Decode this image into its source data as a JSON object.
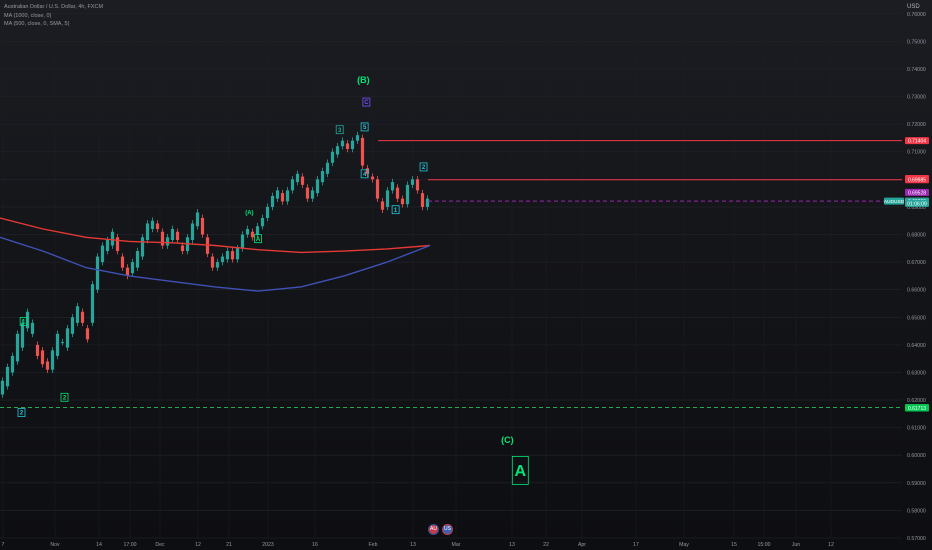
{
  "chart": {
    "title": "Australian Dollar / U.S. Dollar, 4h, FXCM",
    "currency": "USD",
    "indicators": [
      "MA (1000, close, 0)",
      "MA (500, close, 0, SMA, 5)"
    ]
  },
  "chart_data": {
    "type": "candlestick",
    "symbol": "AUDUSD",
    "ylim": [
      0.57,
      0.765
    ],
    "y_ticks": [
      "0.76000",
      "0.75000",
      "0.74000",
      "0.73000",
      "0.72000",
      "0.71000",
      "0.70000",
      "0.69000",
      "0.68000",
      "0.67000",
      "0.66000",
      "0.65000",
      "0.64000",
      "0.63000",
      "0.62000",
      "0.61000",
      "0.60000",
      "0.59000",
      "0.58000",
      "0.57000"
    ],
    "x_ticks": [
      "7",
      "Nov",
      "14",
      "17:00",
      "Dec",
      "12",
      "21",
      "2023",
      "16",
      "Feb",
      "13",
      "Mar",
      "13",
      "22",
      "Apr",
      "17",
      "May",
      "15",
      "15:00",
      "Jun",
      "12"
    ],
    "price_path": [
      [
        0.622,
        0.627
      ],
      [
        0.625,
        0.632
      ],
      [
        0.63,
        0.636
      ],
      [
        0.634,
        0.644
      ],
      [
        0.639,
        0.648
      ],
      [
        0.646,
        0.652
      ],
      [
        0.644,
        0.648
      ],
      [
        0.64,
        0.636
      ],
      [
        0.638,
        0.633
      ],
      [
        0.634,
        0.631
      ],
      [
        0.631,
        0.638
      ],
      [
        0.636,
        0.644
      ],
      [
        0.641,
        0.641
      ],
      [
        0.639,
        0.646
      ],
      [
        0.644,
        0.65
      ],
      [
        0.648,
        0.654
      ],
      [
        0.652,
        0.648
      ],
      [
        0.646,
        0.642
      ],
      [
        0.648,
        0.662
      ],
      [
        0.66,
        0.672
      ],
      [
        0.67,
        0.676
      ],
      [
        0.674,
        0.678
      ],
      [
        0.676,
        0.681
      ],
      [
        0.679,
        0.674
      ],
      [
        0.672,
        0.668
      ],
      [
        0.668,
        0.665
      ],
      [
        0.666,
        0.67
      ],
      [
        0.668,
        0.674
      ],
      [
        0.672,
        0.679
      ],
      [
        0.678,
        0.684
      ],
      [
        0.682,
        0.685
      ],
      [
        0.684,
        0.682
      ],
      [
        0.681,
        0.676
      ],
      [
        0.676,
        0.679
      ],
      [
        0.678,
        0.682
      ],
      [
        0.681,
        0.678
      ],
      [
        0.676,
        0.674
      ],
      [
        0.674,
        0.679
      ],
      [
        0.678,
        0.684
      ],
      [
        0.683,
        0.688
      ],
      [
        0.686,
        0.68
      ],
      [
        0.679,
        0.673
      ],
      [
        0.672,
        0.668
      ],
      [
        0.668,
        0.67
      ],
      [
        0.67,
        0.672
      ],
      [
        0.671,
        0.674
      ],
      [
        0.674,
        0.671
      ],
      [
        0.671,
        0.675
      ],
      [
        0.675,
        0.68
      ],
      [
        0.68,
        0.682
      ],
      [
        0.681,
        0.679
      ],
      [
        0.68,
        0.683
      ],
      [
        0.683,
        0.686
      ],
      [
        0.686,
        0.69
      ],
      [
        0.69,
        0.694
      ],
      [
        0.693,
        0.696
      ],
      [
        0.695,
        0.692
      ],
      [
        0.692,
        0.696
      ],
      [
        0.696,
        0.7
      ],
      [
        0.699,
        0.702
      ],
      [
        0.701,
        0.698
      ],
      [
        0.697,
        0.693
      ],
      [
        0.693,
        0.696
      ],
      [
        0.695,
        0.7
      ],
      [
        0.699,
        0.703
      ],
      [
        0.702,
        0.706
      ],
      [
        0.706,
        0.71
      ],
      [
        0.709,
        0.712
      ],
      [
        0.712,
        0.714
      ],
      [
        0.713,
        0.711
      ],
      [
        0.711,
        0.714
      ],
      [
        0.714,
        0.716
      ],
      [
        0.715,
        0.705
      ],
      [
        0.704,
        0.702
      ],
      [
        0.701,
        0.7
      ],
      [
        0.7,
        0.693
      ],
      [
        0.692,
        0.689
      ],
      [
        0.69,
        0.696
      ],
      [
        0.696,
        0.699
      ],
      [
        0.697,
        0.693
      ],
      [
        0.693,
        0.691
      ],
      [
        0.691,
        0.698
      ],
      [
        0.698,
        0.7
      ],
      [
        0.7,
        0.696
      ],
      [
        0.695,
        0.69
      ],
      [
        0.69,
        0.693
      ]
    ],
    "series": [
      {
        "name": "MA (1000, close, 0)",
        "points": [
          [
            0,
            0.686
          ],
          [
            0.1,
            0.682
          ],
          [
            0.2,
            0.679
          ],
          [
            0.3,
            0.6775
          ],
          [
            0.4,
            0.677
          ],
          [
            0.5,
            0.676
          ],
          [
            0.6,
            0.6745
          ],
          [
            0.7,
            0.6735
          ],
          [
            0.8,
            0.674
          ],
          [
            0.9,
            0.6748
          ],
          [
            1.0,
            0.676
          ]
        ]
      },
      {
        "name": "MA (500, close, 0, SMA, 5)",
        "points": [
          [
            0,
            0.679
          ],
          [
            0.1,
            0.674
          ],
          [
            0.2,
            0.668
          ],
          [
            0.3,
            0.665
          ],
          [
            0.4,
            0.663
          ],
          [
            0.5,
            0.661
          ],
          [
            0.6,
            0.6595
          ],
          [
            0.7,
            0.661
          ],
          [
            0.8,
            0.665
          ],
          [
            0.9,
            0.67
          ],
          [
            1.0,
            0.676
          ]
        ]
      }
    ],
    "horizontal_levels": [
      {
        "price": 0.71404,
        "color": "#f23645",
        "style": "solid"
      },
      {
        "price": 0.69985,
        "color": "#f23645",
        "style": "solid"
      },
      {
        "price": 0.69212,
        "color": "#9c27b0",
        "style": "dashed"
      },
      {
        "price": 0.61732,
        "color": "#22ab55",
        "style": "dashed"
      }
    ],
    "price_labels": [
      {
        "text": "0.71404",
        "price": 0.71404,
        "bg": "#f23645",
        "fg": "#ffffff"
      },
      {
        "text": "0.70030",
        "price": 0.7003,
        "bg": "#f23645",
        "fg": "#ffffff"
      },
      {
        "text": "0.69985",
        "price": 0.69985,
        "bg": "#f23645",
        "fg": "#ffffff"
      },
      {
        "text": "0.69528",
        "price": 0.69528,
        "bg": "#9c27b0",
        "fg": "#ffffff"
      },
      {
        "text": "0.69212",
        "price": 0.69212,
        "bg": "#9c27b0",
        "fg": "#ffffff"
      },
      {
        "text": "0.69209",
        "price": 0.69209,
        "bg": "#26a69a",
        "fg": "#ffffff"
      },
      {
        "text": "01:06:09",
        "price": 0.6913,
        "bg": "#26a69a",
        "fg": "#ffffff"
      },
      {
        "text": "0.61732",
        "price": 0.61732,
        "bg": "#22ab55",
        "fg": "#ffffff"
      },
      {
        "text": "0.61713",
        "price": 0.61713,
        "bg": "#00c853",
        "fg": "#ffffff"
      }
    ],
    "symbol_label": {
      "text": "AUDUSD",
      "price": 0.6921
    },
    "wave_labels": [
      {
        "text": "(B)",
        "t": 0.845,
        "price": 0.736,
        "color": "#00e676",
        "size": "large"
      },
      {
        "text": "C",
        "t": 0.852,
        "price": 0.728,
        "color": "#7c4dff",
        "boxed": true
      },
      {
        "text": "5",
        "t": 0.848,
        "price": 0.719,
        "color": "#26c6da",
        "boxed": true
      },
      {
        "text": "3",
        "t": 0.79,
        "price": 0.718,
        "color": "#26a69a",
        "boxed": true
      },
      {
        "text": "2",
        "t": 0.985,
        "price": 0.7045,
        "color": "#26c6da",
        "boxed": true
      },
      {
        "text": "4",
        "t": 0.848,
        "price": 0.702,
        "color": "#26c6da",
        "boxed": true
      },
      {
        "text": "1",
        "t": 0.92,
        "price": 0.689,
        "color": "#26c6da",
        "boxed": true
      },
      {
        "text": "(A)",
        "t": 0.58,
        "price": 0.688,
        "color": "#00e676",
        "size": "small"
      },
      {
        "text": "A",
        "t": 0.6,
        "price": 0.6785,
        "color": "#00e676",
        "boxed": true
      },
      {
        "text": "1",
        "t": 0.055,
        "price": 0.6485,
        "color": "#00e676",
        "boxed": true
      },
      {
        "text": "2",
        "t": 0.05,
        "price": 0.6155,
        "color": "#26c6da",
        "boxed": true
      },
      {
        "text": "2",
        "t": 0.15,
        "price": 0.621,
        "color": "#00e676",
        "boxed": true
      },
      {
        "text": "(C)",
        "t": 1.18,
        "price": 0.6055,
        "color": "#00e676",
        "size": "large"
      },
      {
        "text": "A",
        "t": 1.21,
        "price": 0.5945,
        "color": "#00e676",
        "boxed": true,
        "size": "xl"
      }
    ],
    "grid": true,
    "legend": "top-left"
  },
  "badges": {
    "au_glyph": "AU",
    "us_glyph": "US"
  }
}
